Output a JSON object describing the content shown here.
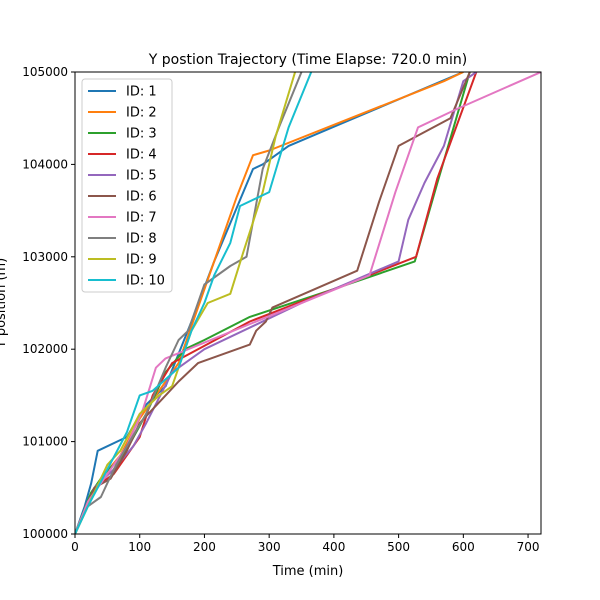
{
  "chart_data": {
    "type": "line",
    "title": "Y postion Trajectory (Time Elapse: 720.0 min)",
    "xlabel": "Time (min)",
    "ylabel": "Y position (m)",
    "xlim": [
      0,
      720
    ],
    "ylim": [
      100000,
      105000
    ],
    "xticks": [
      0,
      100,
      200,
      300,
      400,
      500,
      600,
      700
    ],
    "yticks": [
      100000,
      101000,
      102000,
      103000,
      104000,
      105000
    ],
    "xtick_labels": [
      "0",
      "100",
      "200",
      "300",
      "400",
      "500",
      "600",
      "700"
    ],
    "ytick_labels": [
      "100000",
      "101000",
      "102000",
      "103000",
      "104000",
      "105000"
    ],
    "grid": false,
    "legend_position": "upper-left",
    "series": [
      {
        "name": "ID: 1",
        "color": "#1f77b4",
        "points": [
          [
            0,
            100000
          ],
          [
            15,
            100300
          ],
          [
            25,
            100550
          ],
          [
            35,
            100900
          ],
          [
            80,
            101050
          ],
          [
            110,
            101400
          ],
          [
            140,
            101600
          ],
          [
            180,
            102300
          ],
          [
            215,
            102950
          ],
          [
            245,
            103450
          ],
          [
            275,
            103950
          ],
          [
            290,
            104000
          ],
          [
            330,
            104200
          ],
          [
            600,
            105000
          ]
        ]
      },
      {
        "name": "ID: 2",
        "color": "#ff7f0e",
        "points": [
          [
            0,
            100000
          ],
          [
            20,
            100350
          ],
          [
            40,
            100600
          ],
          [
            70,
            100850
          ],
          [
            100,
            101250
          ],
          [
            125,
            101500
          ],
          [
            160,
            101850
          ],
          [
            190,
            102450
          ],
          [
            220,
            103050
          ],
          [
            250,
            103650
          ],
          [
            275,
            104100
          ],
          [
            300,
            104150
          ],
          [
            570,
            104900
          ],
          [
            600,
            105000
          ]
        ]
      },
      {
        "name": "ID: 3",
        "color": "#2ca02c",
        "points": [
          [
            0,
            100000
          ],
          [
            25,
            100450
          ],
          [
            45,
            100650
          ],
          [
            75,
            100850
          ],
          [
            110,
            101300
          ],
          [
            140,
            101750
          ],
          [
            170,
            102000
          ],
          [
            200,
            102100
          ],
          [
            270,
            102350
          ],
          [
            400,
            102650
          ],
          [
            525,
            102950
          ],
          [
            560,
            103800
          ],
          [
            610,
            105000
          ]
        ]
      },
      {
        "name": "ID: 4",
        "color": "#d62728",
        "points": [
          [
            0,
            100000
          ],
          [
            30,
            100500
          ],
          [
            60,
            100650
          ],
          [
            85,
            100900
          ],
          [
            100,
            101050
          ],
          [
            120,
            101500
          ],
          [
            150,
            101850
          ],
          [
            270,
            102300
          ],
          [
            400,
            102650
          ],
          [
            527,
            103000
          ],
          [
            560,
            103850
          ],
          [
            620,
            105000
          ]
        ]
      },
      {
        "name": "ID: 5",
        "color": "#9467bd",
        "points": [
          [
            0,
            100000
          ],
          [
            30,
            100500
          ],
          [
            60,
            100700
          ],
          [
            90,
            100950
          ],
          [
            110,
            101200
          ],
          [
            150,
            101750
          ],
          [
            200,
            102000
          ],
          [
            350,
            102500
          ],
          [
            500,
            102950
          ],
          [
            515,
            103400
          ],
          [
            540,
            103800
          ],
          [
            570,
            104200
          ],
          [
            600,
            104900
          ],
          [
            620,
            105000
          ]
        ]
      },
      {
        "name": "ID: 6",
        "color": "#8c564b",
        "points": [
          [
            0,
            100000
          ],
          [
            30,
            100500
          ],
          [
            55,
            100600
          ],
          [
            80,
            100900
          ],
          [
            100,
            101200
          ],
          [
            140,
            101500
          ],
          [
            160,
            101650
          ],
          [
            190,
            101850
          ],
          [
            270,
            102050
          ],
          [
            280,
            102200
          ],
          [
            295,
            102300
          ],
          [
            305,
            102450
          ],
          [
            436,
            102850
          ],
          [
            470,
            103600
          ],
          [
            500,
            104200
          ],
          [
            580,
            104500
          ],
          [
            610,
            105000
          ]
        ]
      },
      {
        "name": "ID: 7",
        "color": "#e377c2",
        "points": [
          [
            0,
            100000
          ],
          [
            20,
            100350
          ],
          [
            50,
            100650
          ],
          [
            80,
            100950
          ],
          [
            105,
            101350
          ],
          [
            125,
            101800
          ],
          [
            140,
            101900
          ],
          [
            455,
            102800
          ],
          [
            495,
            103700
          ],
          [
            530,
            104400
          ],
          [
            590,
            104600
          ],
          [
            720,
            105000
          ]
        ]
      },
      {
        "name": "ID: 8",
        "color": "#7f7f7f",
        "points": [
          [
            0,
            100000
          ],
          [
            20,
            100300
          ],
          [
            40,
            100400
          ],
          [
            60,
            100700
          ],
          [
            80,
            100950
          ],
          [
            110,
            101300
          ],
          [
            140,
            101800
          ],
          [
            160,
            102100
          ],
          [
            175,
            102200
          ],
          [
            200,
            102700
          ],
          [
            240,
            102900
          ],
          [
            265,
            103000
          ],
          [
            290,
            103950
          ],
          [
            315,
            104400
          ],
          [
            350,
            105000
          ]
        ]
      },
      {
        "name": "ID: 9",
        "color": "#bcbd22",
        "points": [
          [
            0,
            100000
          ],
          [
            20,
            100300
          ],
          [
            50,
            100750
          ],
          [
            70,
            100900
          ],
          [
            100,
            101300
          ],
          [
            130,
            101500
          ],
          [
            150,
            101600
          ],
          [
            180,
            102200
          ],
          [
            205,
            102500
          ],
          [
            240,
            102600
          ],
          [
            260,
            103050
          ],
          [
            290,
            103700
          ],
          [
            310,
            104300
          ],
          [
            340,
            105000
          ]
        ]
      },
      {
        "name": "ID: 10",
        "color": "#17becf",
        "points": [
          [
            0,
            100000
          ],
          [
            20,
            100300
          ],
          [
            50,
            100700
          ],
          [
            80,
            101100
          ],
          [
            100,
            101500
          ],
          [
            120,
            101550
          ],
          [
            160,
            101800
          ],
          [
            180,
            102200
          ],
          [
            200,
            102500
          ],
          [
            215,
            102800
          ],
          [
            240,
            103150
          ],
          [
            255,
            103550
          ],
          [
            300,
            103700
          ],
          [
            330,
            104400
          ],
          [
            365,
            105000
          ]
        ]
      }
    ]
  }
}
